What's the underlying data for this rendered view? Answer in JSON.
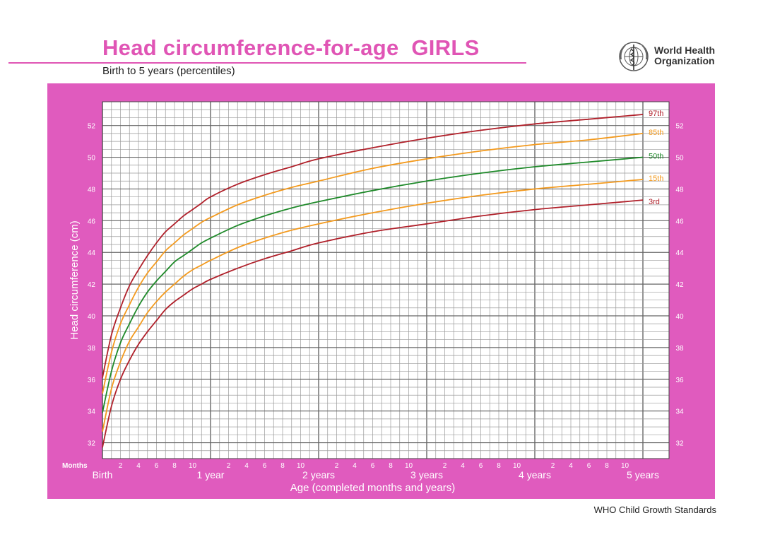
{
  "header": {
    "title": "Head circumference-for-age  GIRLS",
    "subtitle": "Birth to 5 years (percentiles)",
    "organization_line1": "World Health",
    "organization_line2": "Organization"
  },
  "footer": {
    "text": "WHO Child Growth Standards"
  },
  "logo_icon": "who-emblem-icon",
  "colors": {
    "title": "#e055b5",
    "panel": "#e05bbe",
    "p3_p97": "#b0202a",
    "p15_p85": "#f39a1e",
    "p50": "#1f8a2a"
  },
  "chart_data": {
    "type": "line",
    "title": "Head circumference-for-age  GIRLS",
    "subtitle": "Birth to 5 years (percentiles)",
    "xlabel": "Age (completed months and years)",
    "ylabel": "Head circumference (cm)",
    "months_label": "Months",
    "x_unit": "months",
    "xlim": [
      0,
      60
    ],
    "ylim": [
      31,
      53.5
    ],
    "y_ticks": [
      32,
      34,
      36,
      38,
      40,
      42,
      44,
      46,
      48,
      50,
      52
    ],
    "x_year_labels": [
      {
        "month": 0,
        "label": "Birth"
      },
      {
        "month": 12,
        "label": "1 year"
      },
      {
        "month": 24,
        "label": "2 years"
      },
      {
        "month": 36,
        "label": "3 years"
      },
      {
        "month": 48,
        "label": "4 years"
      },
      {
        "month": 60,
        "label": "5 years"
      }
    ],
    "x_month_ticks": [
      "2",
      "4",
      "6",
      "8",
      "10"
    ],
    "grid": true,
    "x": [
      0,
      1,
      2,
      3,
      4,
      5,
      6,
      7,
      8,
      9,
      10,
      11,
      12,
      15,
      18,
      21,
      24,
      30,
      36,
      42,
      48,
      54,
      60
    ],
    "series": [
      {
        "name": "3rd",
        "color": "#b0202a",
        "values": [
          31.7,
          34.3,
          36.0,
          37.2,
          38.2,
          39.0,
          39.7,
          40.4,
          40.9,
          41.3,
          41.7,
          42.0,
          42.3,
          43.0,
          43.6,
          44.1,
          44.6,
          45.3,
          45.8,
          46.3,
          46.7,
          47.0,
          47.3
        ]
      },
      {
        "name": "15th",
        "color": "#f39a1e",
        "values": [
          32.7,
          35.4,
          37.1,
          38.4,
          39.3,
          40.2,
          40.9,
          41.5,
          42.0,
          42.5,
          42.9,
          43.2,
          43.5,
          44.3,
          44.9,
          45.4,
          45.8,
          46.5,
          47.1,
          47.6,
          48.0,
          48.3,
          48.6
        ]
      },
      {
        "name": "50th",
        "color": "#1f8a2a",
        "values": [
          33.9,
          36.5,
          38.3,
          39.5,
          40.6,
          41.5,
          42.2,
          42.8,
          43.4,
          43.8,
          44.2,
          44.6,
          44.9,
          45.7,
          46.3,
          46.8,
          47.2,
          47.9,
          48.5,
          49.0,
          49.4,
          49.7,
          50.0
        ]
      },
      {
        "name": "85th",
        "color": "#f39a1e",
        "values": [
          35.1,
          37.7,
          39.5,
          40.7,
          41.8,
          42.7,
          43.4,
          44.1,
          44.6,
          45.1,
          45.5,
          45.9,
          46.2,
          47.0,
          47.6,
          48.1,
          48.5,
          49.3,
          49.9,
          50.4,
          50.8,
          51.1,
          51.5
        ]
      },
      {
        "name": "97th",
        "color": "#b0202a",
        "values": [
          36.1,
          38.8,
          40.5,
          41.9,
          42.9,
          43.8,
          44.6,
          45.3,
          45.8,
          46.3,
          46.7,
          47.1,
          47.5,
          48.3,
          48.9,
          49.4,
          49.9,
          50.6,
          51.2,
          51.7,
          52.1,
          52.4,
          52.7
        ]
      }
    ]
  }
}
